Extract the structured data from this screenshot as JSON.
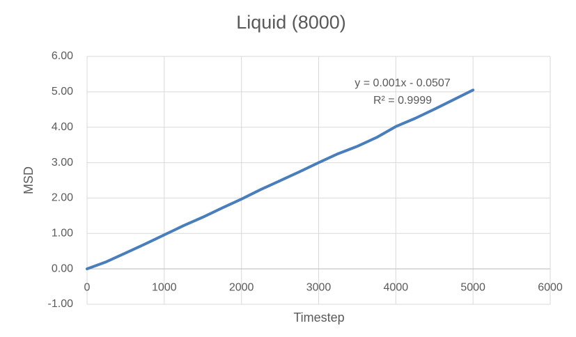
{
  "chart_data": {
    "type": "line",
    "title": "Liquid (8000)",
    "x_label": "Timestep",
    "y_label": "MSD",
    "x": [
      0,
      250,
      500,
      750,
      1000,
      1250,
      1500,
      1750,
      2000,
      2250,
      2500,
      2750,
      3000,
      3250,
      3500,
      3750,
      4000,
      4250,
      4500,
      4750,
      5000
    ],
    "values": [
      0.0,
      0.2,
      0.45,
      0.7,
      0.96,
      1.22,
      1.46,
      1.72,
      1.97,
      2.24,
      2.49,
      2.74,
      3.0,
      3.25,
      3.46,
      3.71,
      4.02,
      4.25,
      4.51,
      4.78,
      5.05
    ],
    "color": "#4a7ebb",
    "xlim": [
      0,
      6000
    ],
    "xticks": [
      0,
      1000,
      2000,
      3000,
      4000,
      5000,
      6000
    ],
    "ylim": [
      -1,
      6
    ],
    "yticks": [
      {
        "value": -1,
        "label": "-1.00"
      },
      {
        "value": 0,
        "label": "0.00"
      },
      {
        "value": 1,
        "label": "1.00"
      },
      {
        "value": 2,
        "label": "2.00"
      },
      {
        "value": 3,
        "label": "3.00"
      },
      {
        "value": 4,
        "label": "4.00"
      },
      {
        "value": 5,
        "label": "5.00"
      },
      {
        "value": 6,
        "label": "6.00"
      }
    ],
    "grid": true,
    "annotations": [
      "y = 0.001x - 0.0507",
      "R² = 0.9999"
    ]
  }
}
